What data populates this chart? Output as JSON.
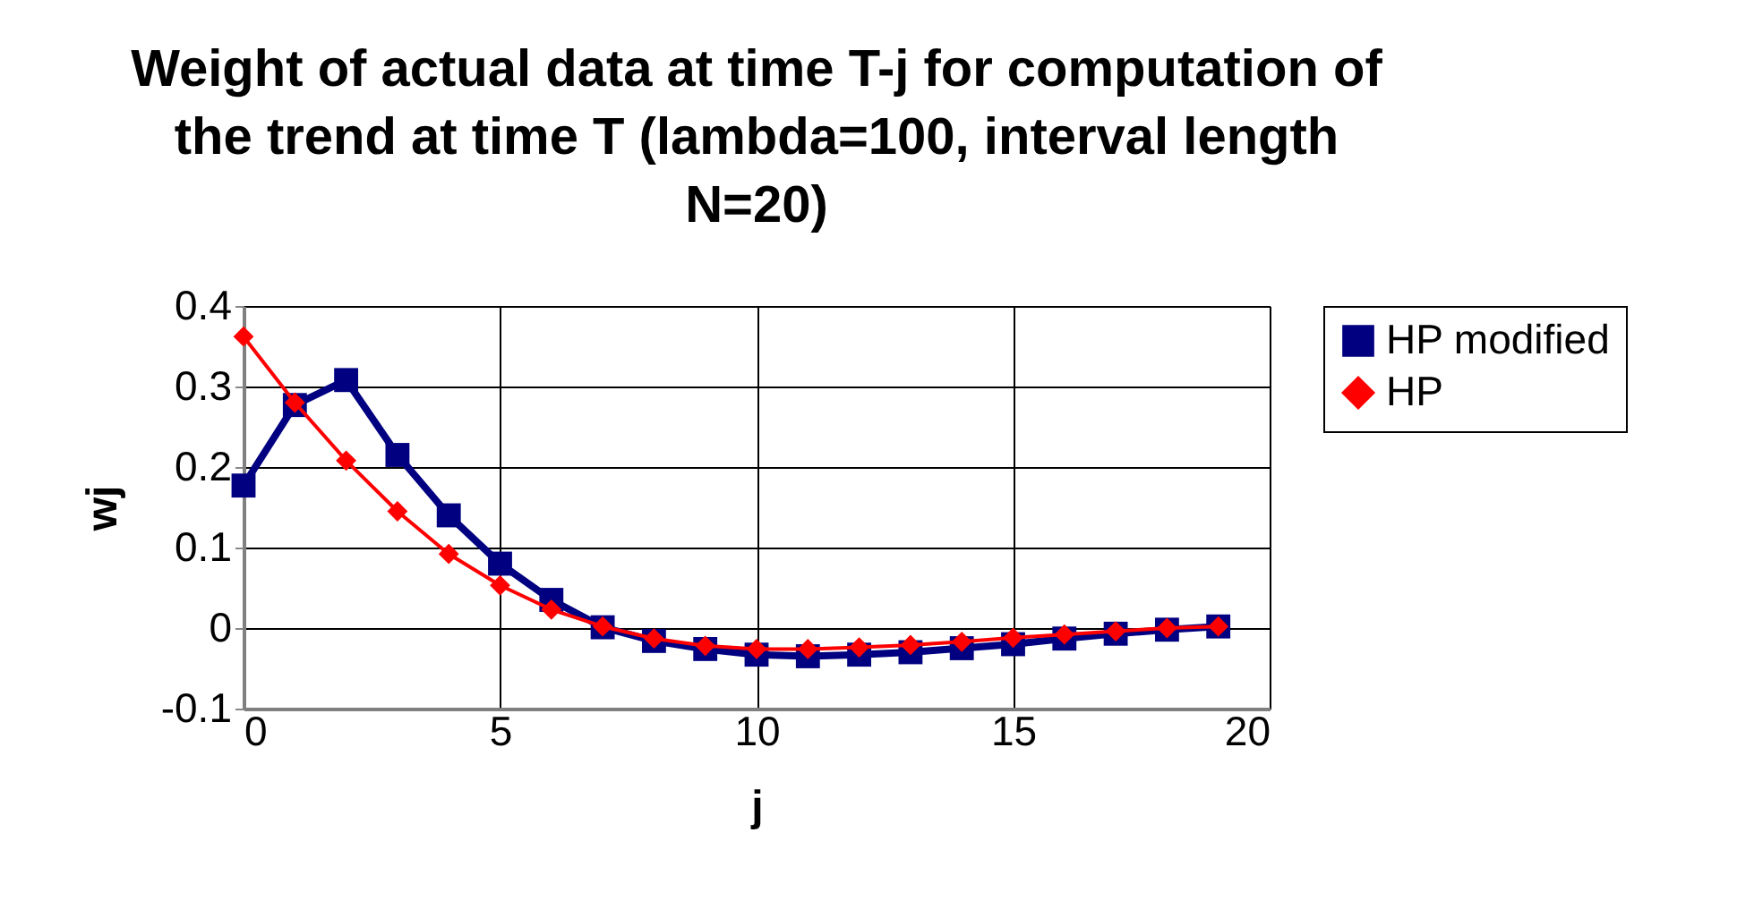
{
  "chart_data": {
    "type": "line",
    "title": "Weight of actual data at time T-j for computation of the trend at time T (lambda=100, interval length N=20)",
    "xlabel": "j",
    "ylabel": "wj",
    "x": [
      0,
      1,
      2,
      3,
      4,
      5,
      6,
      7,
      8,
      9,
      10,
      11,
      12,
      13,
      14,
      15,
      16,
      17,
      18,
      19
    ],
    "series": [
      {
        "name": "HP modified",
        "color": "#000080",
        "marker": "square",
        "values": [
          0.177,
          0.277,
          0.308,
          0.215,
          0.14,
          0.08,
          0.035,
          0.001,
          -0.016,
          -0.026,
          -0.033,
          -0.035,
          -0.033,
          -0.03,
          -0.025,
          -0.02,
          -0.013,
          -0.007,
          -0.002,
          0.002
        ]
      },
      {
        "name": "HP",
        "color": "#ff0000",
        "marker": "diamond",
        "values": [
          0.362,
          0.28,
          0.208,
          0.145,
          0.092,
          0.053,
          0.023,
          0.002,
          -0.013,
          -0.022,
          -0.026,
          -0.026,
          -0.024,
          -0.021,
          -0.017,
          -0.012,
          -0.008,
          -0.004,
          0.0,
          0.002
        ]
      }
    ],
    "xlim": [
      0,
      20
    ],
    "xticks": [
      0,
      5,
      10,
      15,
      20
    ],
    "ylim": [
      -0.1,
      0.4
    ],
    "yticks": [
      -0.1,
      0,
      0.1,
      0.2,
      0.3,
      0.4
    ],
    "grid": true,
    "legend": "right"
  }
}
